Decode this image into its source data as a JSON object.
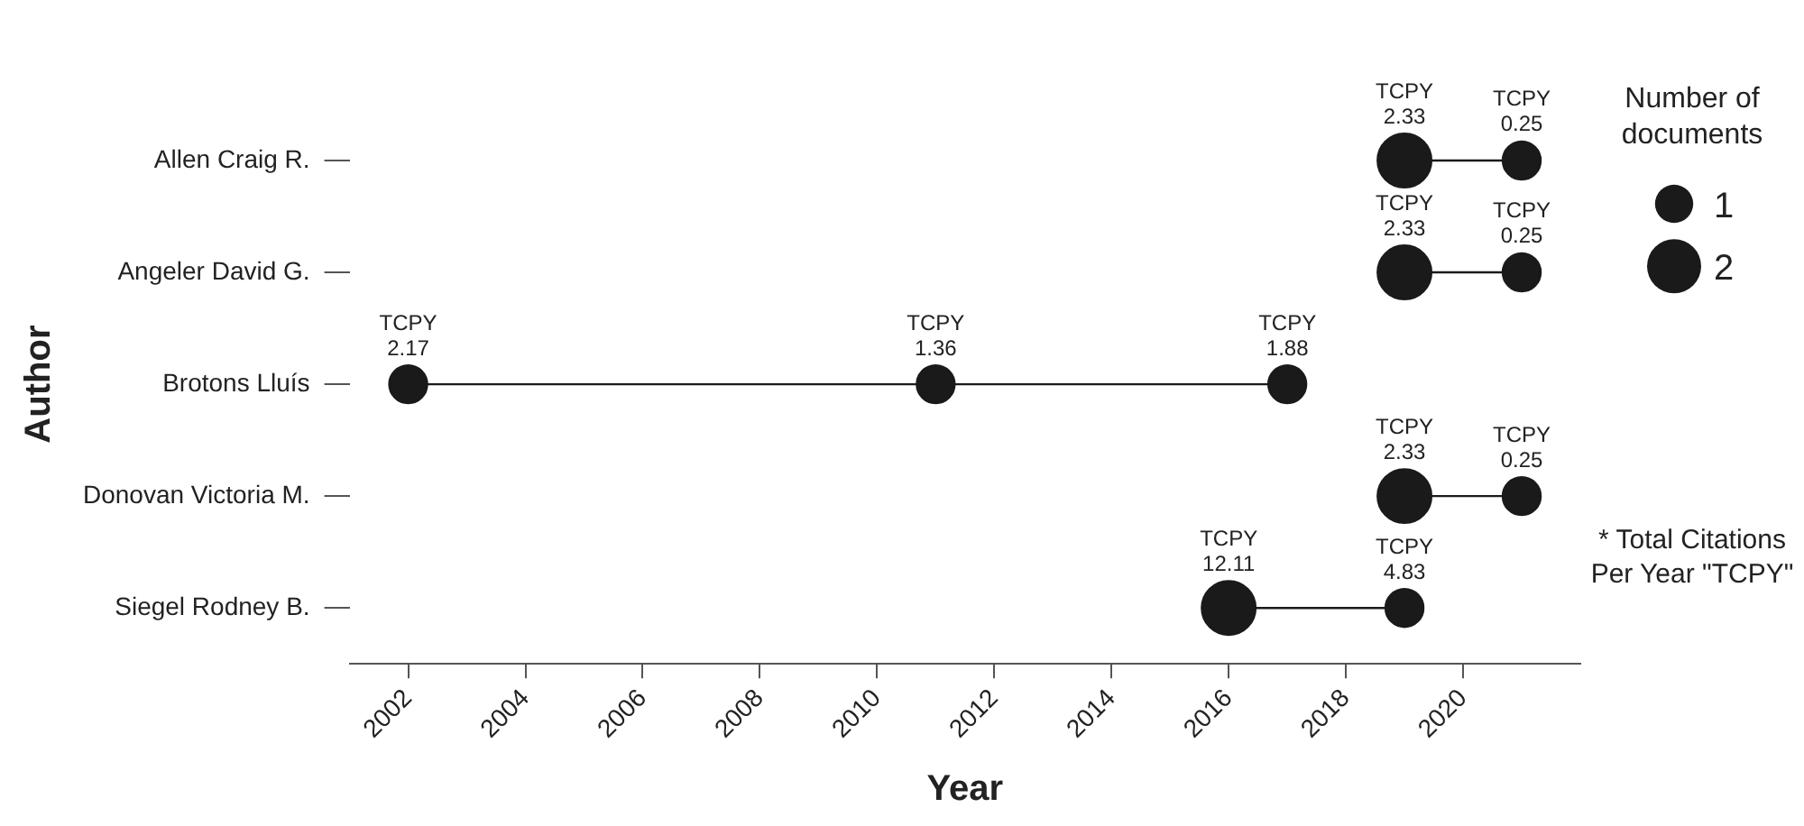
{
  "chart_data": {
    "type": "bubble",
    "orientation": "horizontal",
    "xlabel": "Year",
    "ylabel": "Author",
    "legend_title": "Number of documents",
    "size_legend": [
      1,
      2
    ],
    "grid": false,
    "marker": "circle",
    "line_style": "solid",
    "categories": [
      "Allen Craig R.",
      "Angeler David G.",
      "Brotons Lluís",
      "Donovan Victoria M.",
      "Siegel Rodney B."
    ],
    "xlim": [
      2001,
      2022
    ],
    "xticks": [
      2002,
      2004,
      2006,
      2008,
      2010,
      2012,
      2014,
      2016,
      2018,
      2020
    ],
    "annotations": [
      "* Total Citations Per Year \"TCPY\""
    ],
    "series": [
      {
        "color": "#1a1a1a",
        "values": [
          2019,
          2019,
          2002,
          2019,
          2016
        ],
        "sizes": [
          2,
          2,
          1,
          2,
          2
        ],
        "value_labels": [
          "TCPY\n2.33",
          "TCPY\n2.33",
          "TCPY\n2.17",
          "TCPY\n2.33",
          "TCPY\n12.11"
        ]
      },
      {
        "color": "#1a1a1a",
        "values": [
          2021,
          2021,
          2011,
          2021,
          2019
        ],
        "sizes": [
          1,
          1,
          1,
          1,
          1
        ],
        "value_labels": [
          "TCPY\n0.25",
          "TCPY\n0.25",
          "TCPY\n1.36",
          "TCPY\n0.25",
          "TCPY\n4.83"
        ]
      },
      {
        "color": "#1a1a1a",
        "values": [
          null,
          null,
          2017,
          null,
          null
        ],
        "sizes": [
          null,
          null,
          1,
          null,
          null
        ],
        "value_labels": [
          null,
          null,
          "TCPY\n1.88",
          null,
          null
        ]
      }
    ]
  }
}
